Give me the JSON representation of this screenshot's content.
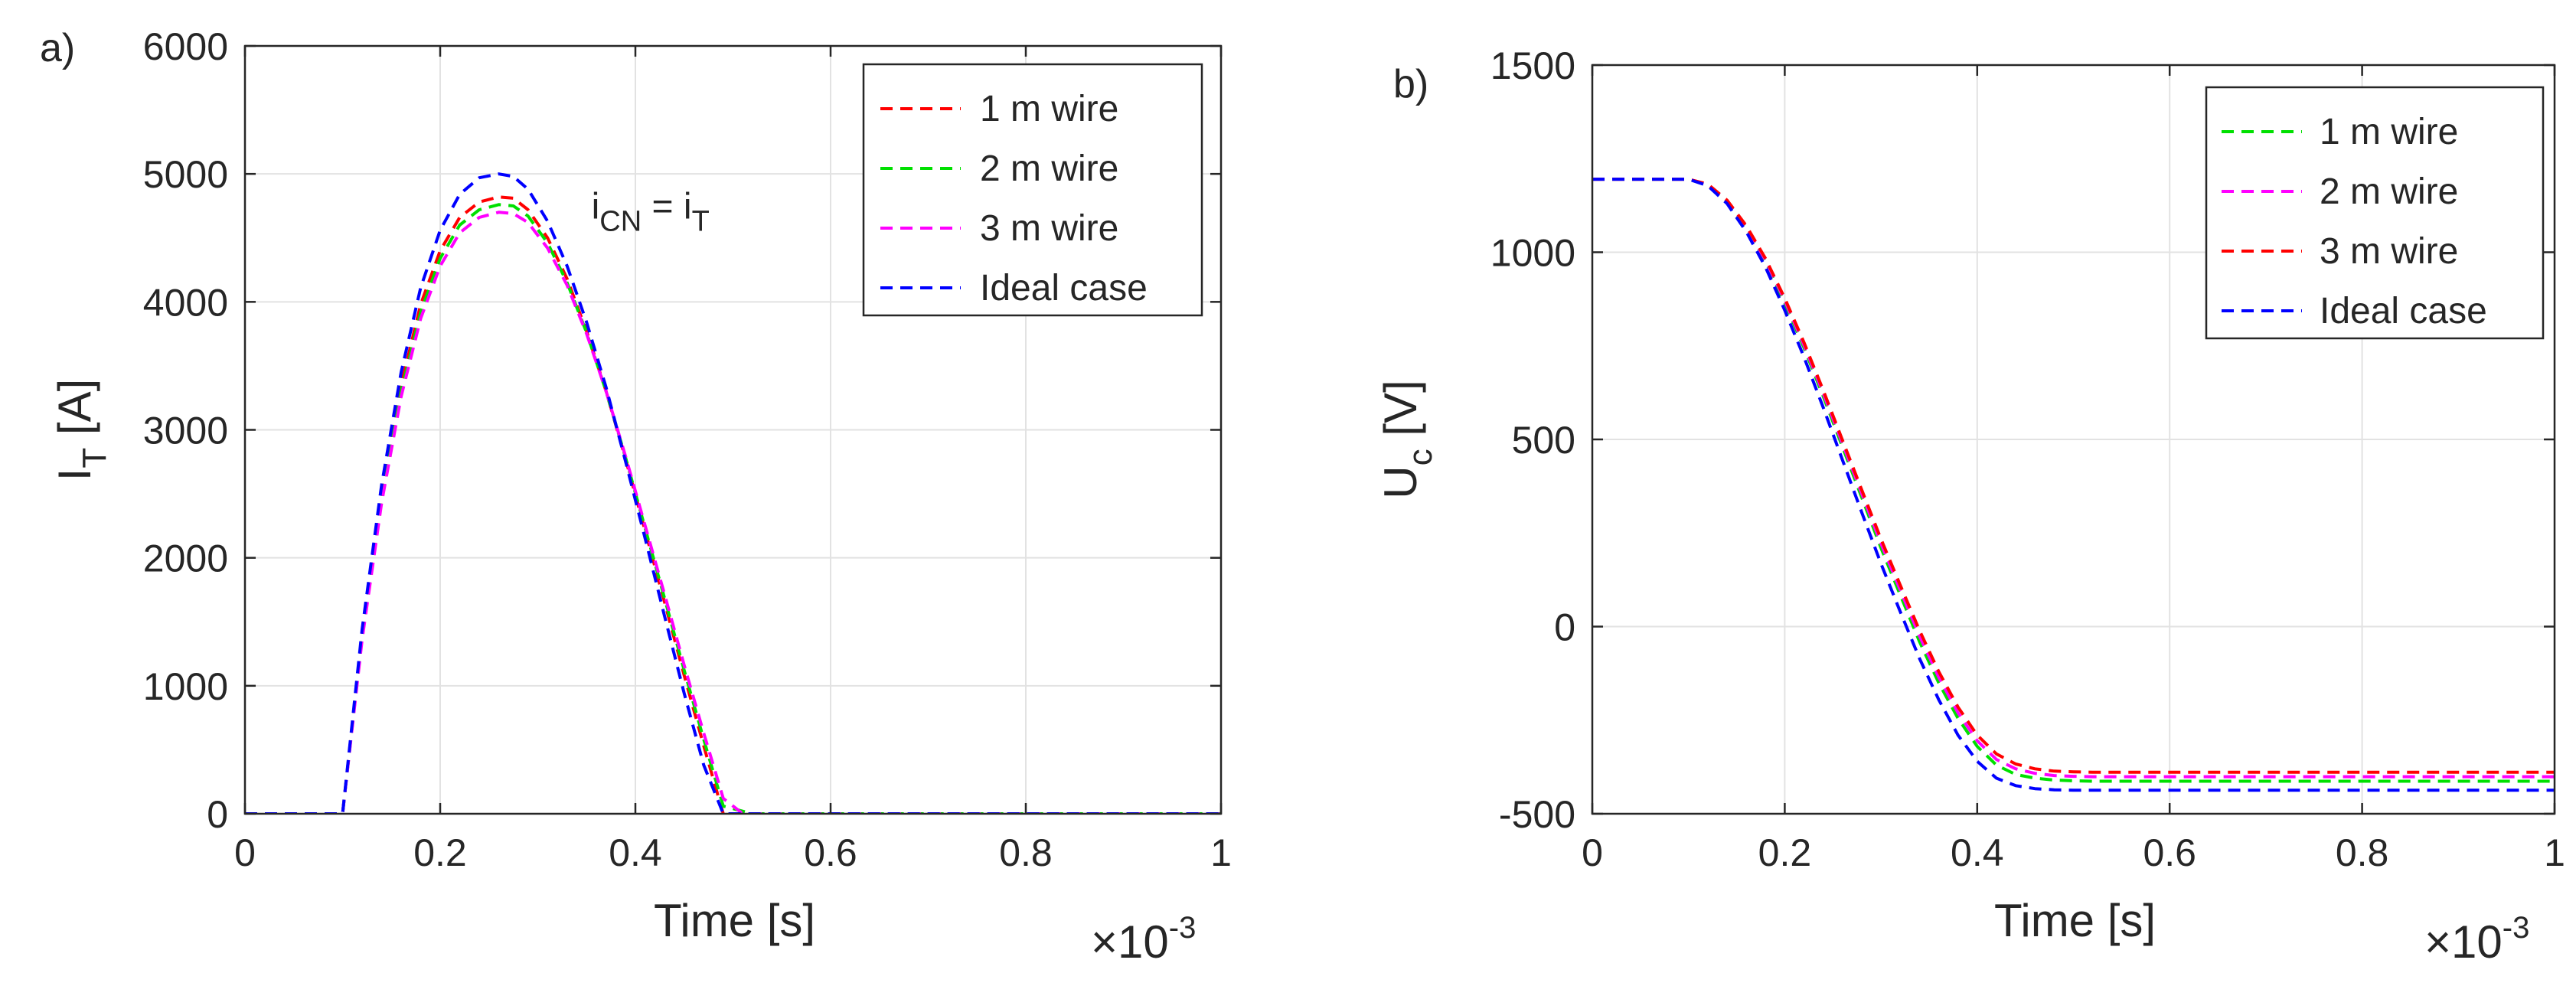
{
  "figure": {
    "background": "#ffffff"
  },
  "chart_data": [
    {
      "type": "line",
      "panel_label": "a)",
      "xlabel": "Time [s]",
      "ylabel_main": "I",
      "ylabel_sub": "T",
      "ylabel_rest": " [A]",
      "x_multiplier_base": "×10",
      "x_multiplier_exp": "-3",
      "xlim": [
        0,
        1
      ],
      "ylim": [
        0,
        6000
      ],
      "xticks": [
        0,
        0.2,
        0.4,
        0.6,
        0.8,
        1
      ],
      "xtick_labels": [
        "0",
        "0.2",
        "0.4",
        "0.6",
        "0.8",
        "1"
      ],
      "yticks": [
        0,
        1000,
        2000,
        3000,
        4000,
        5000,
        6000
      ],
      "ytick_labels": [
        "0",
        "1000",
        "2000",
        "3000",
        "4000",
        "5000",
        "6000"
      ],
      "grid": true,
      "legend_position": "top-right",
      "annotation": {
        "x": 0.355,
        "y": 4650,
        "main1": "i",
        "sub1": "CN",
        "mid": " = i",
        "sub2": "T"
      },
      "series": [
        {
          "name": "1 m wire",
          "color": "#ff0000",
          "x": [
            0,
            0.1,
            0.12,
            0.14,
            0.16,
            0.18,
            0.2,
            0.22,
            0.24,
            0.26,
            0.275,
            0.29,
            0.31,
            0.33,
            0.35,
            0.37,
            0.39,
            0.41,
            0.43,
            0.45,
            0.47,
            0.49,
            0.51,
            0.53,
            0.6,
            0.8,
            1
          ],
          "y": [
            0,
            0,
            1400,
            2500,
            3350,
            3980,
            4400,
            4660,
            4780,
            4820,
            4810,
            4720,
            4500,
            4180,
            3770,
            3300,
            2770,
            2210,
            1650,
            1080,
            530,
            0,
            0,
            0,
            0,
            0,
            0
          ]
        },
        {
          "name": "2 m wire",
          "color": "#00e000",
          "x": [
            0,
            0.1,
            0.12,
            0.14,
            0.16,
            0.18,
            0.2,
            0.22,
            0.24,
            0.26,
            0.275,
            0.29,
            0.31,
            0.33,
            0.35,
            0.37,
            0.39,
            0.41,
            0.43,
            0.45,
            0.47,
            0.49,
            0.52,
            0.53,
            0.6,
            0.8,
            1
          ],
          "y": [
            0,
            0,
            1380,
            2460,
            3300,
            3920,
            4340,
            4600,
            4720,
            4760,
            4750,
            4670,
            4460,
            4150,
            3760,
            3300,
            2780,
            2230,
            1680,
            1120,
            580,
            60,
            0,
            0,
            0,
            0,
            0
          ]
        },
        {
          "name": "3 m wire",
          "color": "#ff00ff",
          "x": [
            0,
            0.1,
            0.12,
            0.14,
            0.16,
            0.18,
            0.2,
            0.22,
            0.24,
            0.26,
            0.275,
            0.29,
            0.31,
            0.33,
            0.35,
            0.37,
            0.39,
            0.41,
            0.43,
            0.45,
            0.47,
            0.49,
            0.51,
            0.53,
            0.6,
            0.8,
            1
          ],
          "y": [
            0,
            0,
            1360,
            2430,
            3260,
            3870,
            4280,
            4540,
            4660,
            4700,
            4690,
            4620,
            4420,
            4130,
            3750,
            3300,
            2790,
            2250,
            1710,
            1160,
            630,
            120,
            0,
            0,
            0,
            0,
            0
          ]
        },
        {
          "name": "Ideal case",
          "color": "#0000ff",
          "x": [
            0,
            0.1,
            0.12,
            0.14,
            0.16,
            0.18,
            0.2,
            0.22,
            0.24,
            0.26,
            0.275,
            0.29,
            0.31,
            0.33,
            0.35,
            0.37,
            0.39,
            0.41,
            0.43,
            0.45,
            0.47,
            0.49,
            0.505,
            0.52,
            0.6,
            0.8,
            1
          ],
          "y": [
            0,
            0,
            1440,
            2570,
            3450,
            4110,
            4560,
            4840,
            4970,
            5000,
            4980,
            4880,
            4630,
            4280,
            3840,
            3330,
            2750,
            2150,
            1540,
            940,
            380,
            0,
            0,
            0,
            0,
            0,
            0
          ]
        }
      ]
    },
    {
      "type": "line",
      "panel_label": "b)",
      "xlabel": "Time [s]",
      "ylabel_main": "U",
      "ylabel_sub": "c",
      "ylabel_rest": " [V]",
      "x_multiplier_base": "×10",
      "x_multiplier_exp": "-3",
      "xlim": [
        0,
        1
      ],
      "ylim": [
        -500,
        1500
      ],
      "xticks": [
        0,
        0.2,
        0.4,
        0.6,
        0.8,
        1
      ],
      "xtick_labels": [
        "0",
        "0.2",
        "0.4",
        "0.6",
        "0.8",
        "1"
      ],
      "yticks": [
        -500,
        0,
        500,
        1000,
        1500
      ],
      "ytick_labels": [
        "-500",
        "0",
        "500",
        "1000",
        "1500"
      ],
      "grid": true,
      "legend_position": "top-right",
      "series": [
        {
          "name": "1 m wire",
          "color": "#00e000",
          "x": [
            0,
            0.1,
            0.12,
            0.14,
            0.16,
            0.18,
            0.2,
            0.22,
            0.24,
            0.26,
            0.28,
            0.3,
            0.32,
            0.34,
            0.36,
            0.38,
            0.4,
            0.42,
            0.44,
            0.46,
            0.48,
            0.5,
            0.52,
            0.6,
            0.8,
            1
          ],
          "y": [
            1195,
            1195,
            1180,
            1135,
            1065,
            975,
            865,
            745,
            615,
            480,
            345,
            210,
            85,
            -40,
            -150,
            -245,
            -320,
            -370,
            -395,
            -405,
            -410,
            -412,
            -413,
            -413,
            -413,
            -413
          ]
        },
        {
          "name": "2 m wire",
          "color": "#ff00ff",
          "x": [
            0,
            0.1,
            0.12,
            0.14,
            0.16,
            0.18,
            0.2,
            0.22,
            0.24,
            0.26,
            0.28,
            0.3,
            0.32,
            0.34,
            0.36,
            0.38,
            0.4,
            0.42,
            0.44,
            0.46,
            0.48,
            0.5,
            0.52,
            0.6,
            0.8,
            1
          ],
          "y": [
            1195,
            1195,
            1181,
            1137,
            1068,
            979,
            871,
            752,
            623,
            489,
            355,
            222,
            98,
            -25,
            -135,
            -230,
            -305,
            -355,
            -380,
            -392,
            -398,
            -400,
            -401,
            -401,
            -401,
            -401
          ]
        },
        {
          "name": "3 m wire",
          "color": "#ff0000",
          "x": [
            0,
            0.1,
            0.12,
            0.14,
            0.16,
            0.18,
            0.2,
            0.22,
            0.24,
            0.26,
            0.28,
            0.3,
            0.32,
            0.34,
            0.36,
            0.38,
            0.4,
            0.42,
            0.44,
            0.46,
            0.48,
            0.5,
            0.52,
            0.6,
            0.8,
            1
          ],
          "y": [
            1195,
            1195,
            1182,
            1139,
            1071,
            983,
            877,
            759,
            631,
            498,
            365,
            234,
            111,
            -10,
            -120,
            -215,
            -290,
            -340,
            -367,
            -380,
            -386,
            -388,
            -389,
            -389,
            -389,
            -389
          ]
        },
        {
          "name": "Ideal case",
          "color": "#0000ff",
          "x": [
            0,
            0.1,
            0.12,
            0.14,
            0.16,
            0.18,
            0.2,
            0.22,
            0.24,
            0.26,
            0.28,
            0.3,
            0.32,
            0.34,
            0.36,
            0.38,
            0.4,
            0.42,
            0.44,
            0.46,
            0.48,
            0.5,
            0.52,
            0.6,
            0.8,
            1
          ],
          "y": [
            1195,
            1195,
            1178,
            1130,
            1055,
            960,
            845,
            720,
            585,
            445,
            305,
            168,
            40,
            -85,
            -195,
            -290,
            -360,
            -405,
            -425,
            -433,
            -436,
            -437,
            -437,
            -437,
            -437,
            -437
          ]
        }
      ]
    }
  ]
}
